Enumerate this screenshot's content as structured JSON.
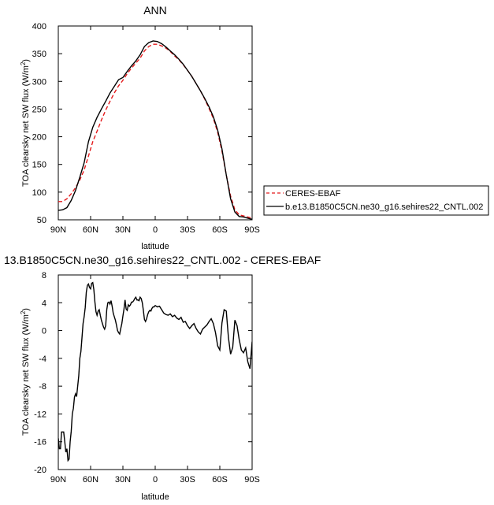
{
  "chart_data": [
    {
      "type": "line",
      "title": "ANN",
      "xlabel": "latitude",
      "ylabel_main": "TOA clearsky net SW flux (W/m",
      "ylabel_sup": "2",
      "ylabel_close": ")",
      "x_ticks": [
        "90N",
        "60N",
        "30N",
        "0",
        "30S",
        "60S",
        "90S"
      ],
      "x_tick_values": [
        -90,
        -60,
        -30,
        0,
        30,
        60,
        90
      ],
      "xlim": [
        -90,
        90
      ],
      "ylim": [
        50,
        400
      ],
      "y_ticks": [
        50,
        100,
        150,
        200,
        250,
        300,
        350,
        400
      ],
      "legend": {
        "placement": "right",
        "items": [
          {
            "label": "CERES-EBAF",
            "color": "#e41a1c",
            "dash": "dashed"
          },
          {
            "label": "b.e13.B1850C5CN.ne30_g16.sehires22_CNTL.002",
            "color": "#000000",
            "dash": "solid"
          }
        ]
      },
      "series": [
        {
          "name": "CERES-EBAF",
          "color": "#e41a1c",
          "dash": "dashed",
          "x": [
            -90,
            -86,
            -82,
            -78,
            -74,
            -70,
            -66,
            -62,
            -58,
            -54,
            -50,
            -46,
            -42,
            -38,
            -34,
            -30,
            -26,
            -22,
            -18,
            -14,
            -10,
            -6,
            -2,
            2,
            6,
            10,
            14,
            18,
            22,
            26,
            30,
            34,
            38,
            42,
            46,
            50,
            54,
            58,
            62,
            66,
            70,
            74,
            78,
            82,
            86,
            90
          ],
          "values": [
            83,
            83,
            88,
            97,
            108,
            122,
            140,
            165,
            191,
            210,
            230,
            248,
            264,
            279,
            292,
            302,
            314,
            324,
            333,
            342,
            355,
            363,
            367,
            367,
            364,
            360,
            354,
            346,
            339,
            330,
            320,
            309,
            296,
            283,
            268,
            251,
            233,
            208,
            174,
            131,
            93,
            68,
            59,
            57,
            55,
            53
          ]
        },
        {
          "name": "b.e13.B1850C5CN.ne30_g16.sehires22_CNTL.002",
          "color": "#000000",
          "dash": "solid",
          "x": [
            -90,
            -86,
            -82,
            -78,
            -74,
            -70,
            -66,
            -62,
            -58,
            -54,
            -50,
            -46,
            -42,
            -38,
            -34,
            -30,
            -26,
            -22,
            -18,
            -14,
            -10,
            -6,
            -2,
            2,
            6,
            10,
            14,
            18,
            22,
            26,
            30,
            34,
            38,
            42,
            46,
            50,
            54,
            58,
            62,
            66,
            70,
            74,
            78,
            82,
            86,
            90
          ],
          "values": [
            67,
            68,
            72,
            85,
            103,
            127,
            153,
            191,
            217,
            235,
            250,
            264,
            279,
            291,
            303,
            307,
            318,
            328,
            337,
            348,
            363,
            370,
            373,
            372,
            368,
            362,
            355,
            348,
            340,
            331,
            320,
            309,
            296,
            283,
            269,
            254,
            236,
            212,
            178,
            131,
            88,
            64,
            56,
            55,
            53,
            51
          ]
        }
      ]
    },
    {
      "type": "line",
      "title": "13.B1850C5CN.ne30_g16.sehires22_CNTL.002 - CERES-EBAF",
      "xlabel": "latitude",
      "ylabel_main": "TOA clearsky net SW flux (W/m",
      "ylabel_sup": "2",
      "ylabel_close": ")",
      "x_ticks": [
        "90N",
        "60N",
        "30N",
        "0",
        "30S",
        "60S",
        "90S"
      ],
      "x_tick_values": [
        -90,
        -60,
        -30,
        0,
        30,
        60,
        90
      ],
      "xlim": [
        -90,
        90
      ],
      "ylim": [
        -20,
        8
      ],
      "y_ticks": [
        -20,
        -16,
        -12,
        -8,
        -4,
        0,
        4,
        8
      ],
      "series": [
        {
          "color": "#000000",
          "x": [
            -90,
            -89,
            -88,
            -87,
            -86,
            -85,
            -84,
            -83,
            -82,
            -81,
            -80,
            -79,
            -78,
            -77,
            -76,
            -75,
            -74,
            -73,
            -72,
            -71,
            -70,
            -69,
            -68,
            -67,
            -66,
            -65,
            -64,
            -63,
            -62,
            -61,
            -60,
            -59,
            -58,
            -57,
            -56,
            -55,
            -54,
            -53,
            -52,
            -51,
            -50,
            -49,
            -48,
            -47,
            -46,
            -45,
            -44,
            -43,
            -42,
            -41,
            -40,
            -39,
            -38,
            -37,
            -36,
            -35,
            -34,
            -33,
            -32,
            -31,
            -30,
            -29,
            -28,
            -27,
            -26,
            -25,
            -24,
            -23,
            -22,
            -21,
            -20,
            -19,
            -18,
            -17,
            -16,
            -15,
            -14,
            -13,
            -12,
            -11,
            -10,
            -9,
            -8,
            -7,
            -6,
            -5,
            -4,
            -3,
            -2,
            -1,
            0,
            2,
            4,
            6,
            8,
            10,
            12,
            14,
            16,
            18,
            20,
            22,
            24,
            26,
            28,
            30,
            32,
            34,
            36,
            38,
            40,
            42,
            44,
            46,
            48,
            50,
            52,
            54,
            56,
            58,
            60,
            62,
            64,
            66,
            68,
            70,
            72,
            74,
            76,
            78,
            80,
            82,
            84,
            86,
            88,
            90
          ],
          "values": [
            -15.5,
            -17.0,
            -17.0,
            -14.6,
            -14.6,
            -14.6,
            -16.0,
            -17.5,
            -17.0,
            -18.7,
            -18.5,
            -16.0,
            -14.5,
            -12.0,
            -11.2,
            -9.6,
            -9.1,
            -9.5,
            -8.0,
            -6.5,
            -4.0,
            -3.0,
            -1.0,
            1.0,
            2.0,
            3.3,
            5.5,
            6.5,
            6.7,
            6.2,
            6.0,
            6.8,
            6.9,
            5.9,
            4.1,
            2.7,
            2.2,
            2.8,
            3.0,
            2.2,
            1.5,
            1.0,
            0.5,
            0.2,
            0.7,
            3.0,
            4.0,
            4.1,
            3.8,
            4.3,
            3.5,
            2.5,
            2.0,
            1.5,
            0.8,
            0.0,
            -0.3,
            -0.5,
            0.3,
            1.0,
            2.1,
            3.1,
            4.4,
            3.1,
            2.9,
            3.7,
            3.5,
            3.7,
            4.1,
            4.1,
            4.3,
            4.6,
            4.8,
            4.4,
            4.4,
            4.3,
            4.8,
            4.6,
            4.0,
            2.9,
            1.6,
            1.3,
            1.7,
            2.3,
            2.7,
            2.9,
            2.8,
            3.2,
            3.4,
            3.4,
            3.6,
            3.4,
            3.5,
            3.0,
            2.5,
            2.3,
            2.2,
            2.4,
            2.0,
            2.2,
            1.8,
            1.6,
            1.9,
            1.2,
            1.3,
            0.7,
            0.3,
            0.7,
            1.0,
            0.3,
            -0.2,
            -0.5,
            0.2,
            0.5,
            0.8,
            1.3,
            1.7,
            1.0,
            -0.3,
            -2.2,
            -2.8,
            1.1,
            3.0,
            2.8,
            -1.0,
            -3.4,
            -2.4,
            1.5,
            0.7,
            -1.3,
            -2.8,
            -3.2,
            -2.5,
            -4.5,
            -5.5,
            -1.6
          ]
        }
      ]
    }
  ]
}
